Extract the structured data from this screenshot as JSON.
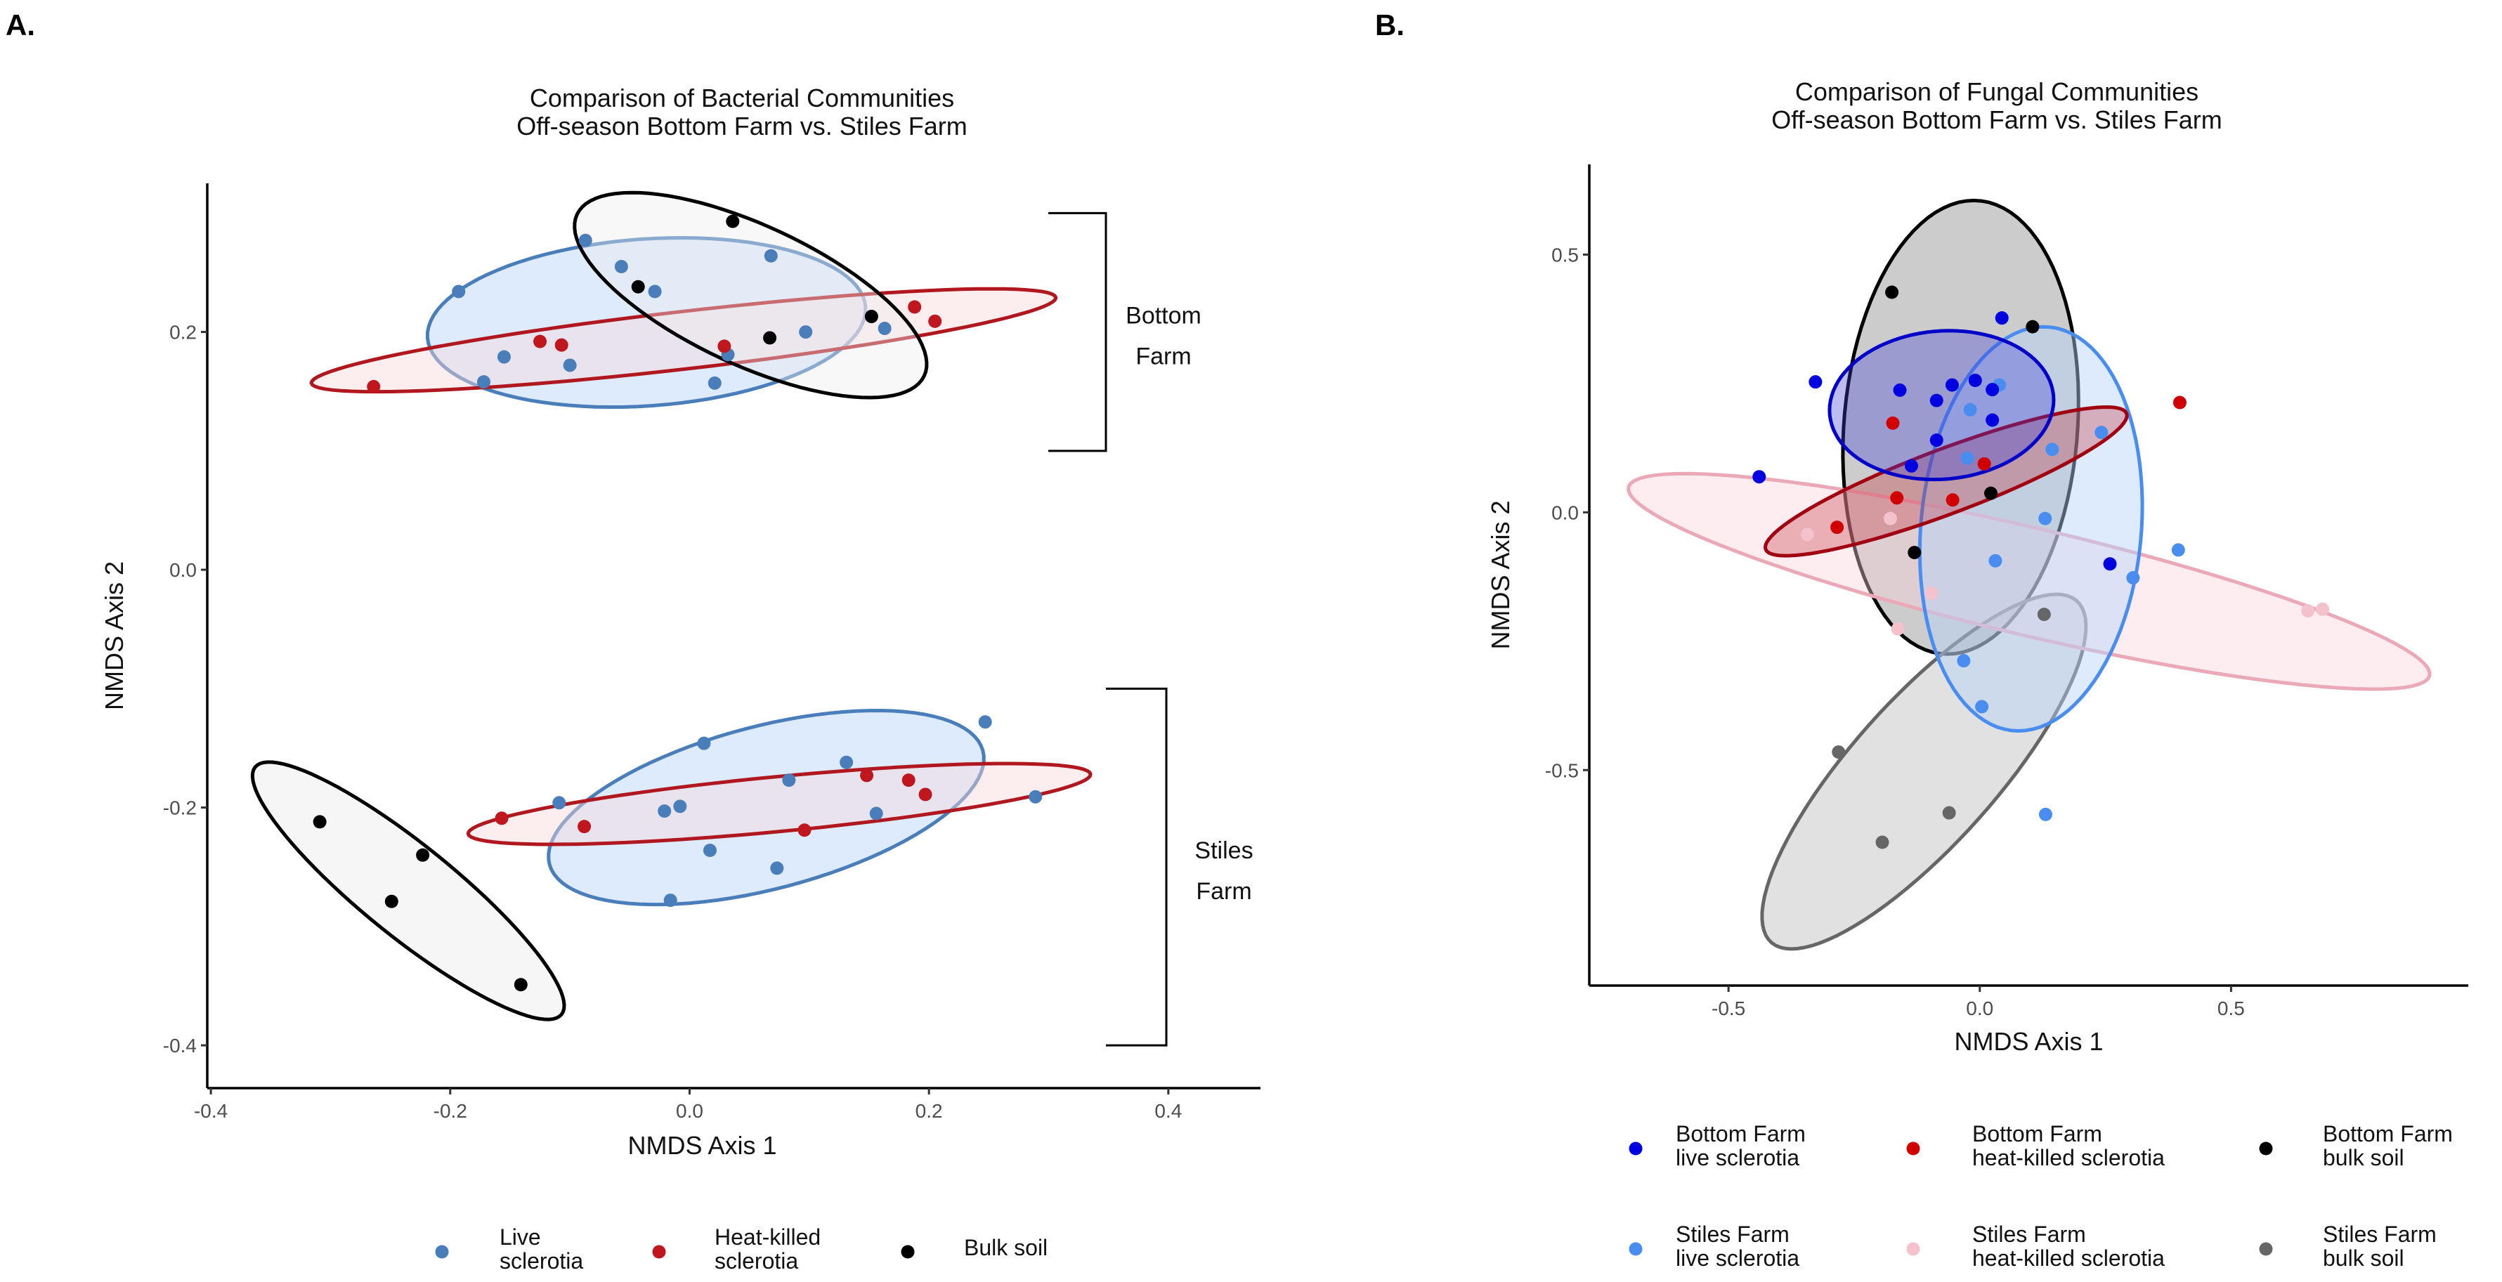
{
  "chart_data": [
    {
      "panel_label": "A.",
      "type": "scatter",
      "title": [
        "Comparison of Bacterial Communities",
        "Off-season Bottom Farm vs. Stiles Farm"
      ],
      "xlabel": "NMDS Axis 1",
      "ylabel": "NMDS Axis 2",
      "xlim": [
        -0.403,
        0.477
      ],
      "ylim": [
        -0.436,
        0.325
      ],
      "grid": false,
      "xticks": {
        "values": [
          -0.4,
          -0.2,
          0.0,
          0.2,
          0.4
        ],
        "labels": [
          "-0.4",
          "-0.2",
          "0.0",
          "0.2",
          "0.4"
        ]
      },
      "yticks": {
        "values": [
          -0.4,
          -0.2,
          0.0,
          0.2
        ],
        "labels": [
          "-0.4",
          "-0.2",
          "0.0",
          "0.2"
        ]
      },
      "series": [
        {
          "name": "Bottom Farm live sclerotia",
          "color": "#4A7EBB",
          "points": [
            [
              -0.193,
              0.234
            ],
            [
              -0.087,
              0.277
            ],
            [
              -0.057,
              0.255
            ],
            [
              -0.029,
              0.234
            ],
            [
              -0.172,
              0.158
            ],
            [
              -0.155,
              0.179
            ],
            [
              -0.1,
              0.172
            ],
            [
              0.021,
              0.157
            ],
            [
              0.032,
              0.181
            ],
            [
              0.068,
              0.264
            ],
            [
              0.097,
              0.2
            ],
            [
              0.163,
              0.203
            ]
          ],
          "ellipse": {
            "center": [
              -0.036,
              0.208
            ],
            "u": [
              0.183,
              0.013
            ],
            "v": [
              -0.005,
              0.07
            ],
            "stroke": "#4A7EBB",
            "fill": "#CFE2FB",
            "fill_opacity": 0.7
          }
        },
        {
          "name": "Bottom Farm heat-killed sclerotia",
          "color": "#C0171E",
          "points": [
            [
              -0.264,
              0.154
            ],
            [
              -0.125,
              0.192
            ],
            [
              -0.107,
              0.189
            ],
            [
              0.029,
              0.188
            ],
            [
              0.188,
              0.221
            ],
            [
              0.205,
              0.209
            ]
          ],
          "ellipse": {
            "center": [
              -0.005,
              0.193
            ],
            "u": [
              0.311,
              0.036
            ],
            "v": [
              -0.003,
              0.024
            ],
            "stroke": "#B0171E",
            "fill": "#F9D9DC",
            "fill_opacity": 0.45
          }
        },
        {
          "name": "Bottom Farm bulk soil",
          "color": "#000000",
          "points": [
            [
              0.036,
              0.293
            ],
            [
              -0.043,
              0.238
            ],
            [
              0.067,
              0.195
            ],
            [
              0.152,
              0.213
            ]
          ],
          "ellipse": {
            "center": [
              0.051,
              0.231
            ],
            "u": [
              0.145,
              -0.068
            ],
            "v": [
              0.025,
              0.053
            ],
            "stroke": "#000000",
            "fill": "#EEEEEE",
            "fill_opacity": 0.4
          }
        },
        {
          "name": "Stiles Farm live sclerotia",
          "color": "#4A7EBB",
          "points": [
            [
              0.012,
              -0.146
            ],
            [
              0.131,
              -0.162
            ],
            [
              0.247,
              -0.128
            ],
            [
              0.289,
              -0.191
            ],
            [
              -0.109,
              -0.196
            ],
            [
              0.083,
              -0.177
            ],
            [
              -0.021,
              -0.203
            ],
            [
              -0.008,
              -0.199
            ],
            [
              0.017,
              -0.236
            ],
            [
              0.073,
              -0.251
            ],
            [
              0.156,
              -0.205
            ],
            [
              -0.016,
              -0.278
            ]
          ],
          "ellipse": {
            "center": [
              0.064,
              -0.2
            ],
            "u": [
              0.181,
              0.048
            ],
            "v": [
              -0.018,
              0.066
            ],
            "stroke": "#4A7EBB",
            "fill": "#CFE2FB",
            "fill_opacity": 0.7
          }
        },
        {
          "name": "Stiles Farm heat-killed sclerotia",
          "color": "#C0171E",
          "points": [
            [
              -0.157,
              -0.209
            ],
            [
              -0.088,
              -0.216
            ],
            [
              0.148,
              -0.173
            ],
            [
              0.183,
              -0.177
            ],
            [
              0.197,
              -0.189
            ],
            [
              0.096,
              -0.219
            ]
          ],
          "ellipse": {
            "center": [
              0.075,
              -0.197
            ],
            "u": [
              0.26,
              0.025
            ],
            "v": [
              -0.002,
              0.023
            ],
            "stroke": "#B0171E",
            "fill": "#F9D9DC",
            "fill_opacity": 0.45
          }
        },
        {
          "name": "Stiles Farm bulk soil",
          "color": "#000000",
          "points": [
            [
              -0.309,
              -0.212
            ],
            [
              -0.223,
              -0.24
            ],
            [
              -0.249,
              -0.279
            ],
            [
              -0.141,
              -0.349
            ]
          ],
          "ellipse": {
            "center": [
              -0.235,
              -0.27
            ],
            "u": [
              0.128,
              -0.104
            ],
            "v": [
              0.024,
              0.03
            ],
            "stroke": "#000000",
            "fill": "#EEEEEE",
            "fill_opacity": 0.5
          }
        }
      ],
      "brackets": [
        {
          "label": [
            "Bottom",
            "Farm"
          ],
          "y_range": [
            0.1,
            0.3
          ]
        },
        {
          "label": [
            "Stiles",
            "Farm"
          ],
          "y_range": [
            -0.4,
            -0.1
          ]
        }
      ],
      "legend_position": "bottom",
      "legend": [
        {
          "label": [
            "Live",
            "sclerotia"
          ],
          "color": "#4A7EBB"
        },
        {
          "label": [
            "Heat-killed",
            "sclerotia"
          ],
          "color": "#C0171E"
        },
        {
          "label": [
            "Bulk soil"
          ],
          "color": "#000000"
        }
      ]
    },
    {
      "panel_label": "B.",
      "type": "scatter",
      "title": [
        "Comparison of Fungal Communities",
        "Off-season Bottom Farm vs. Stiles Farm"
      ],
      "xlabel": "NMDS Axis 1",
      "ylabel": "NMDS Axis 2",
      "xlim": [
        -0.777,
        0.972
      ],
      "ylim": [
        -0.918,
        0.675
      ],
      "grid": false,
      "xticks": {
        "values": [
          -0.5,
          0.0,
          0.5
        ],
        "labels": [
          "-0.5",
          "0.0",
          "0.5"
        ]
      },
      "yticks": {
        "values": [
          -0.5,
          0.0,
          0.5
        ],
        "labels": [
          "-0.5",
          "0.0",
          "0.5"
        ]
      },
      "series": [
        {
          "name": "Bottom Farm bulk soil",
          "color": "#000000",
          "points": [
            [
              -0.175,
              0.427
            ],
            [
              0.105,
              0.36
            ],
            [
              0.022,
              0.037
            ],
            [
              -0.13,
              -0.078
            ]
          ],
          "ellipse": {
            "center": [
              -0.038,
              0.165
            ],
            "u": [
              0.026,
              0.44
            ],
            "v": [
              0.233,
              0
            ],
            "stroke": "#000000",
            "fill": "#9A9A9A",
            "fill_opacity": 0.5
          }
        },
        {
          "name": "Stiles Farm bulk soil",
          "color": "#666666",
          "points": [
            [
              0.128,
              -0.198
            ],
            [
              -0.281,
              -0.465
            ],
            [
              -0.061,
              -0.583
            ],
            [
              -0.194,
              -0.64
            ]
          ],
          "ellipse": {
            "center": [
              -0.111,
              -0.503
            ],
            "u": [
              0.303,
              0.332
            ],
            "v": [
              0.11,
              -0.09
            ],
            "stroke": "#666666",
            "fill": "#A8A8A8",
            "fill_opacity": 0.35
          }
        },
        {
          "name": "Stiles Farm heat-killed sclerotia",
          "color": "#F4C2CC",
          "points": [
            [
              -0.178,
              -0.012
            ],
            [
              -0.343,
              -0.043
            ],
            [
              -0.096,
              -0.157
            ],
            [
              -0.163,
              -0.226
            ],
            [
              0.653,
              -0.191
            ],
            [
              0.682,
              -0.188
            ]
          ],
          "ellipse": {
            "center": [
              0.098,
              -0.134
            ],
            "u": [
              0.797,
              -0.183
            ],
            "v": [
              0.026,
              0.101
            ],
            "stroke": "#EBA9B8",
            "fill": "#F9D3DB",
            "fill_opacity": 0.4
          }
        },
        {
          "name": "Stiles Farm live sclerotia",
          "color": "#4A8DF0",
          "points": [
            [
              -0.019,
              0.199
            ],
            [
              0.039,
              0.247
            ],
            [
              -0.025,
              0.105
            ],
            [
              0.144,
              0.122
            ],
            [
              0.242,
              0.155
            ],
            [
              0.13,
              -0.012
            ],
            [
              0.031,
              -0.094
            ],
            [
              0.305,
              -0.127
            ],
            [
              0.395,
              -0.073
            ],
            [
              -0.032,
              -0.288
            ],
            [
              0.004,
              -0.377
            ],
            [
              0.131,
              -0.586
            ]
          ],
          "ellipse": {
            "center": [
              0.102,
              -0.032
            ],
            "u": [
              0.025,
              0.392
            ],
            "v": [
              0.22,
              0
            ],
            "stroke": "#4A8DF0",
            "fill": "#B5D2FA",
            "fill_opacity": 0.45
          }
        },
        {
          "name": "Bottom Farm heat-killed sclerotia",
          "color": "#D00000",
          "points": [
            [
              -0.173,
              0.173
            ],
            [
              -0.165,
              0.028
            ],
            [
              -0.054,
              0.024
            ],
            [
              0.009,
              0.094
            ],
            [
              -0.284,
              -0.029
            ],
            [
              0.398,
              0.213
            ]
          ],
          "ellipse": {
            "center": [
              -0.067,
              0.06
            ],
            "u": [
              0.359,
              0.132
            ],
            "v": [
              -0.024,
              0.058
            ],
            "stroke": "#A00010",
            "fill": "#C0202A",
            "fill_opacity": 0.3
          }
        },
        {
          "name": "Bottom Farm live sclerotia",
          "color": "#0000E0",
          "points": [
            [
              -0.327,
              0.253
            ],
            [
              -0.159,
              0.237
            ],
            [
              -0.086,
              0.217
            ],
            [
              -0.055,
              0.247
            ],
            [
              -0.009,
              0.256
            ],
            [
              0.025,
              0.238
            ],
            [
              0.044,
              0.377
            ],
            [
              0.025,
              0.179
            ],
            [
              -0.086,
              0.14
            ],
            [
              -0.136,
              0.09
            ],
            [
              -0.439,
              0.069
            ],
            [
              0.259,
              -0.1
            ]
          ],
          "ellipse": {
            "center": [
              -0.076,
              0.208
            ],
            "u": [
              0.223,
              0.01
            ],
            "v": [
              0,
              0.144
            ],
            "stroke": "#0000C8",
            "fill": "#4040D8",
            "fill_opacity": 0.35
          }
        }
      ],
      "legend_position": "bottom",
      "legend": [
        {
          "label": [
            "Bottom Farm",
            "live sclerotia"
          ],
          "color": "#0000E0"
        },
        {
          "label": [
            "Bottom Farm",
            "heat-killed sclerotia"
          ],
          "color": "#D00000"
        },
        {
          "label": [
            "Bottom Farm",
            "bulk soil"
          ],
          "color": "#000000"
        },
        {
          "label": [
            "Stiles Farm",
            "live sclerotia"
          ],
          "color": "#4A8DF0"
        },
        {
          "label": [
            "Stiles Farm",
            "heat-killed sclerotia"
          ],
          "color": "#F4C2CC"
        },
        {
          "label": [
            "Stiles Farm",
            "bulk soil"
          ],
          "color": "#666666"
        }
      ]
    }
  ]
}
